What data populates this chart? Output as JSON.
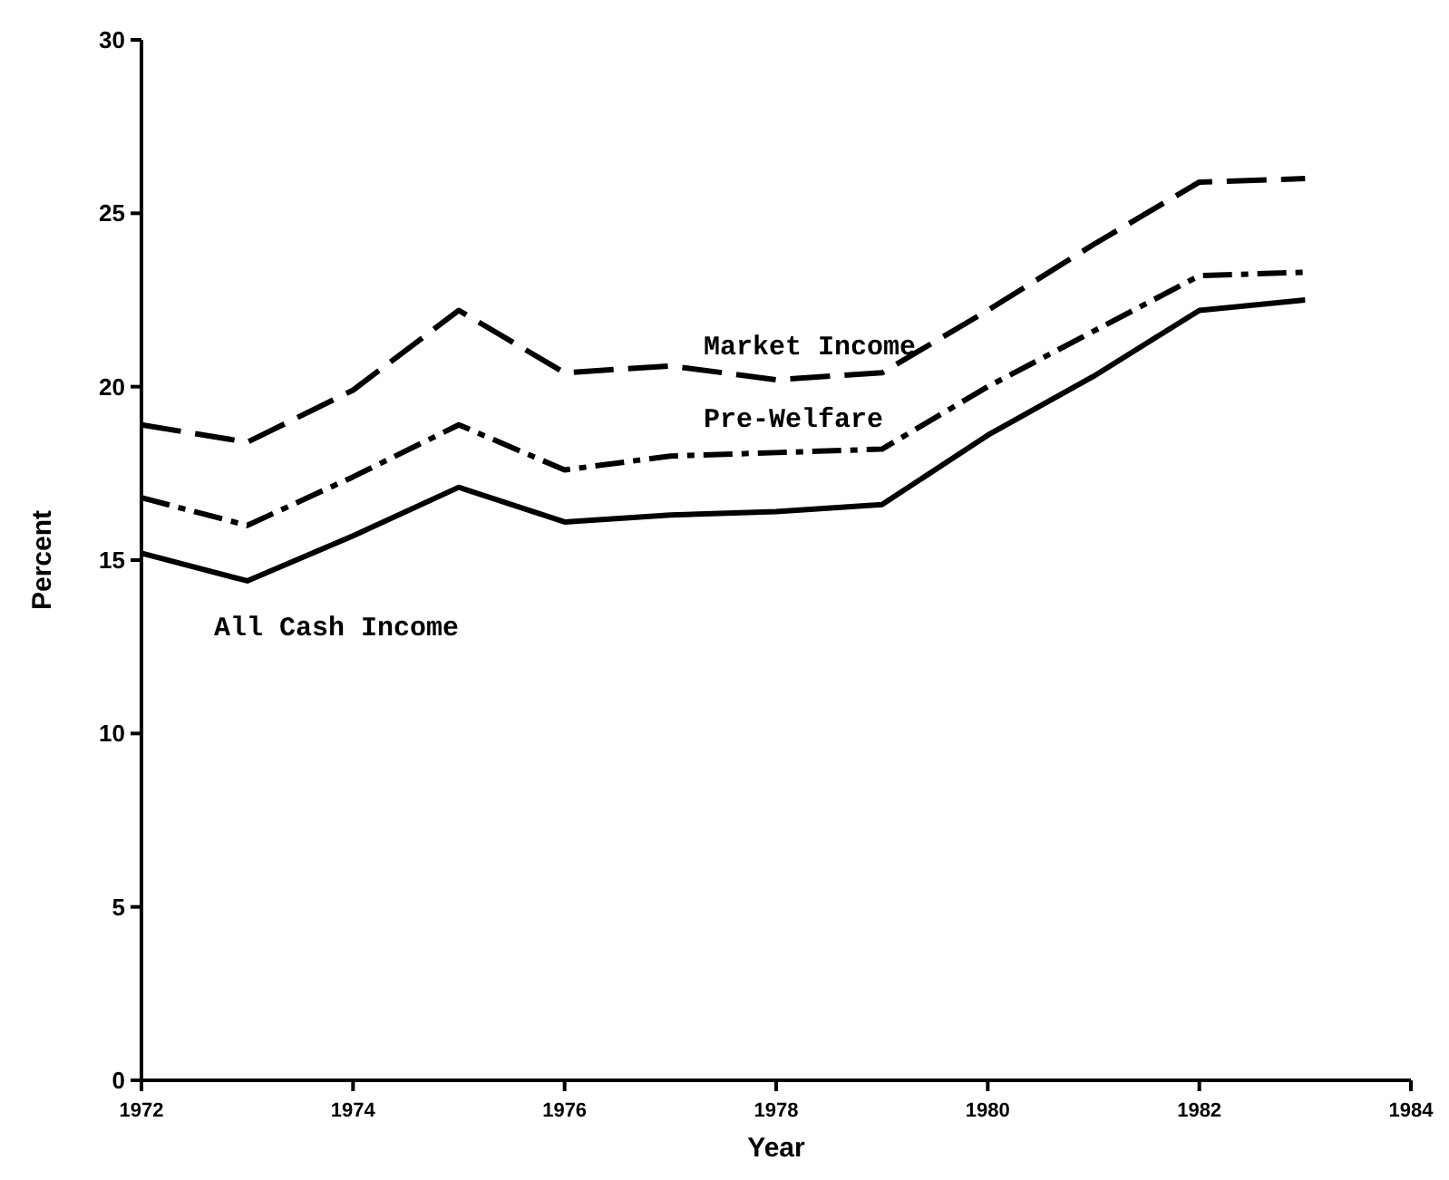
{
  "chart_data": {
    "type": "line",
    "xlabel": "Year",
    "ylabel": "Percent",
    "x": [
      1972,
      1973,
      1974,
      1975,
      1976,
      1977,
      1978,
      1979,
      1980,
      1981,
      1982,
      1983
    ],
    "xlim": [
      1972,
      1984
    ],
    "xticks": [
      1972,
      1974,
      1976,
      1978,
      1980,
      1982,
      1984
    ],
    "ylim": [
      0,
      30
    ],
    "yticks": [
      0,
      5,
      10,
      15,
      20,
      25,
      30
    ],
    "marker": "none",
    "series": [
      {
        "name": "Market Income",
        "color": "#000000",
        "line_style": "dashed",
        "values": [
          18.9,
          18.4,
          19.9,
          22.2,
          20.4,
          20.6,
          20.2,
          20.4,
          22.2,
          24.1,
          25.9,
          26.0
        ]
      },
      {
        "name": "Pre-Welfare",
        "color": "#000000",
        "line_style": "dashdot",
        "values": [
          16.8,
          16.0,
          17.4,
          18.9,
          17.6,
          18.0,
          18.1,
          18.2,
          20.0,
          21.6,
          23.2,
          23.3
        ]
      },
      {
        "name": "All Cash Income",
        "color": "#000000",
        "line_style": "solid",
        "values": [
          15.2,
          14.4,
          15.7,
          17.1,
          16.1,
          16.3,
          16.4,
          16.6,
          18.6,
          20.3,
          22.2,
          22.5
        ]
      }
    ]
  }
}
